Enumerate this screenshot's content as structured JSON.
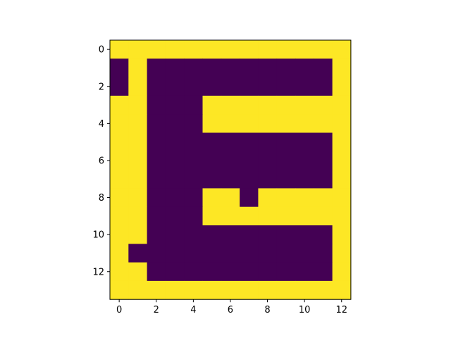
{
  "chart_data": {
    "type": "heatmap",
    "title": "",
    "xlabel": "",
    "ylabel": "",
    "xlim": [
      -0.5,
      12.5
    ],
    "ylim": [
      13.5,
      -0.5
    ],
    "xticks": [
      0,
      2,
      4,
      6,
      8,
      10,
      12
    ],
    "yticks": [
      0,
      2,
      4,
      6,
      8,
      10,
      12
    ],
    "colormap": {
      "low": "#440154",
      "high": "#fde725"
    },
    "grid": false,
    "legend": "none",
    "rows": 14,
    "cols": 13,
    "values": [
      [
        1,
        1,
        1,
        1,
        1,
        1,
        1,
        1,
        1,
        1,
        1,
        1,
        1
      ],
      [
        0,
        1,
        0,
        0,
        0,
        0,
        0,
        0,
        0,
        0,
        0,
        0,
        1
      ],
      [
        0,
        1,
        0,
        0,
        0,
        0,
        0,
        0,
        0,
        0,
        0,
        0,
        1
      ],
      [
        1,
        1,
        0,
        0,
        0,
        1,
        1,
        1,
        1,
        1,
        1,
        1,
        1
      ],
      [
        1,
        1,
        0,
        0,
        0,
        1,
        1,
        1,
        1,
        1,
        1,
        1,
        1
      ],
      [
        1,
        1,
        0,
        0,
        0,
        0,
        0,
        0,
        0,
        0,
        0,
        0,
        1
      ],
      [
        1,
        1,
        0,
        0,
        0,
        0,
        0,
        0,
        0,
        0,
        0,
        0,
        1
      ],
      [
        1,
        1,
        0,
        0,
        0,
        0,
        0,
        0,
        0,
        0,
        0,
        0,
        1
      ],
      [
        1,
        1,
        0,
        0,
        0,
        1,
        1,
        0,
        1,
        1,
        1,
        1,
        1
      ],
      [
        1,
        1,
        0,
        0,
        0,
        1,
        1,
        1,
        1,
        1,
        1,
        1,
        1
      ],
      [
        1,
        1,
        0,
        0,
        0,
        0,
        0,
        0,
        0,
        0,
        0,
        0,
        1
      ],
      [
        1,
        0,
        0,
        0,
        0,
        0,
        0,
        0,
        0,
        0,
        0,
        0,
        1
      ],
      [
        1,
        1,
        0,
        0,
        0,
        0,
        0,
        0,
        0,
        0,
        0,
        0,
        1
      ],
      [
        1,
        1,
        1,
        1,
        1,
        1,
        1,
        1,
        1,
        1,
        1,
        1,
        1
      ]
    ]
  }
}
